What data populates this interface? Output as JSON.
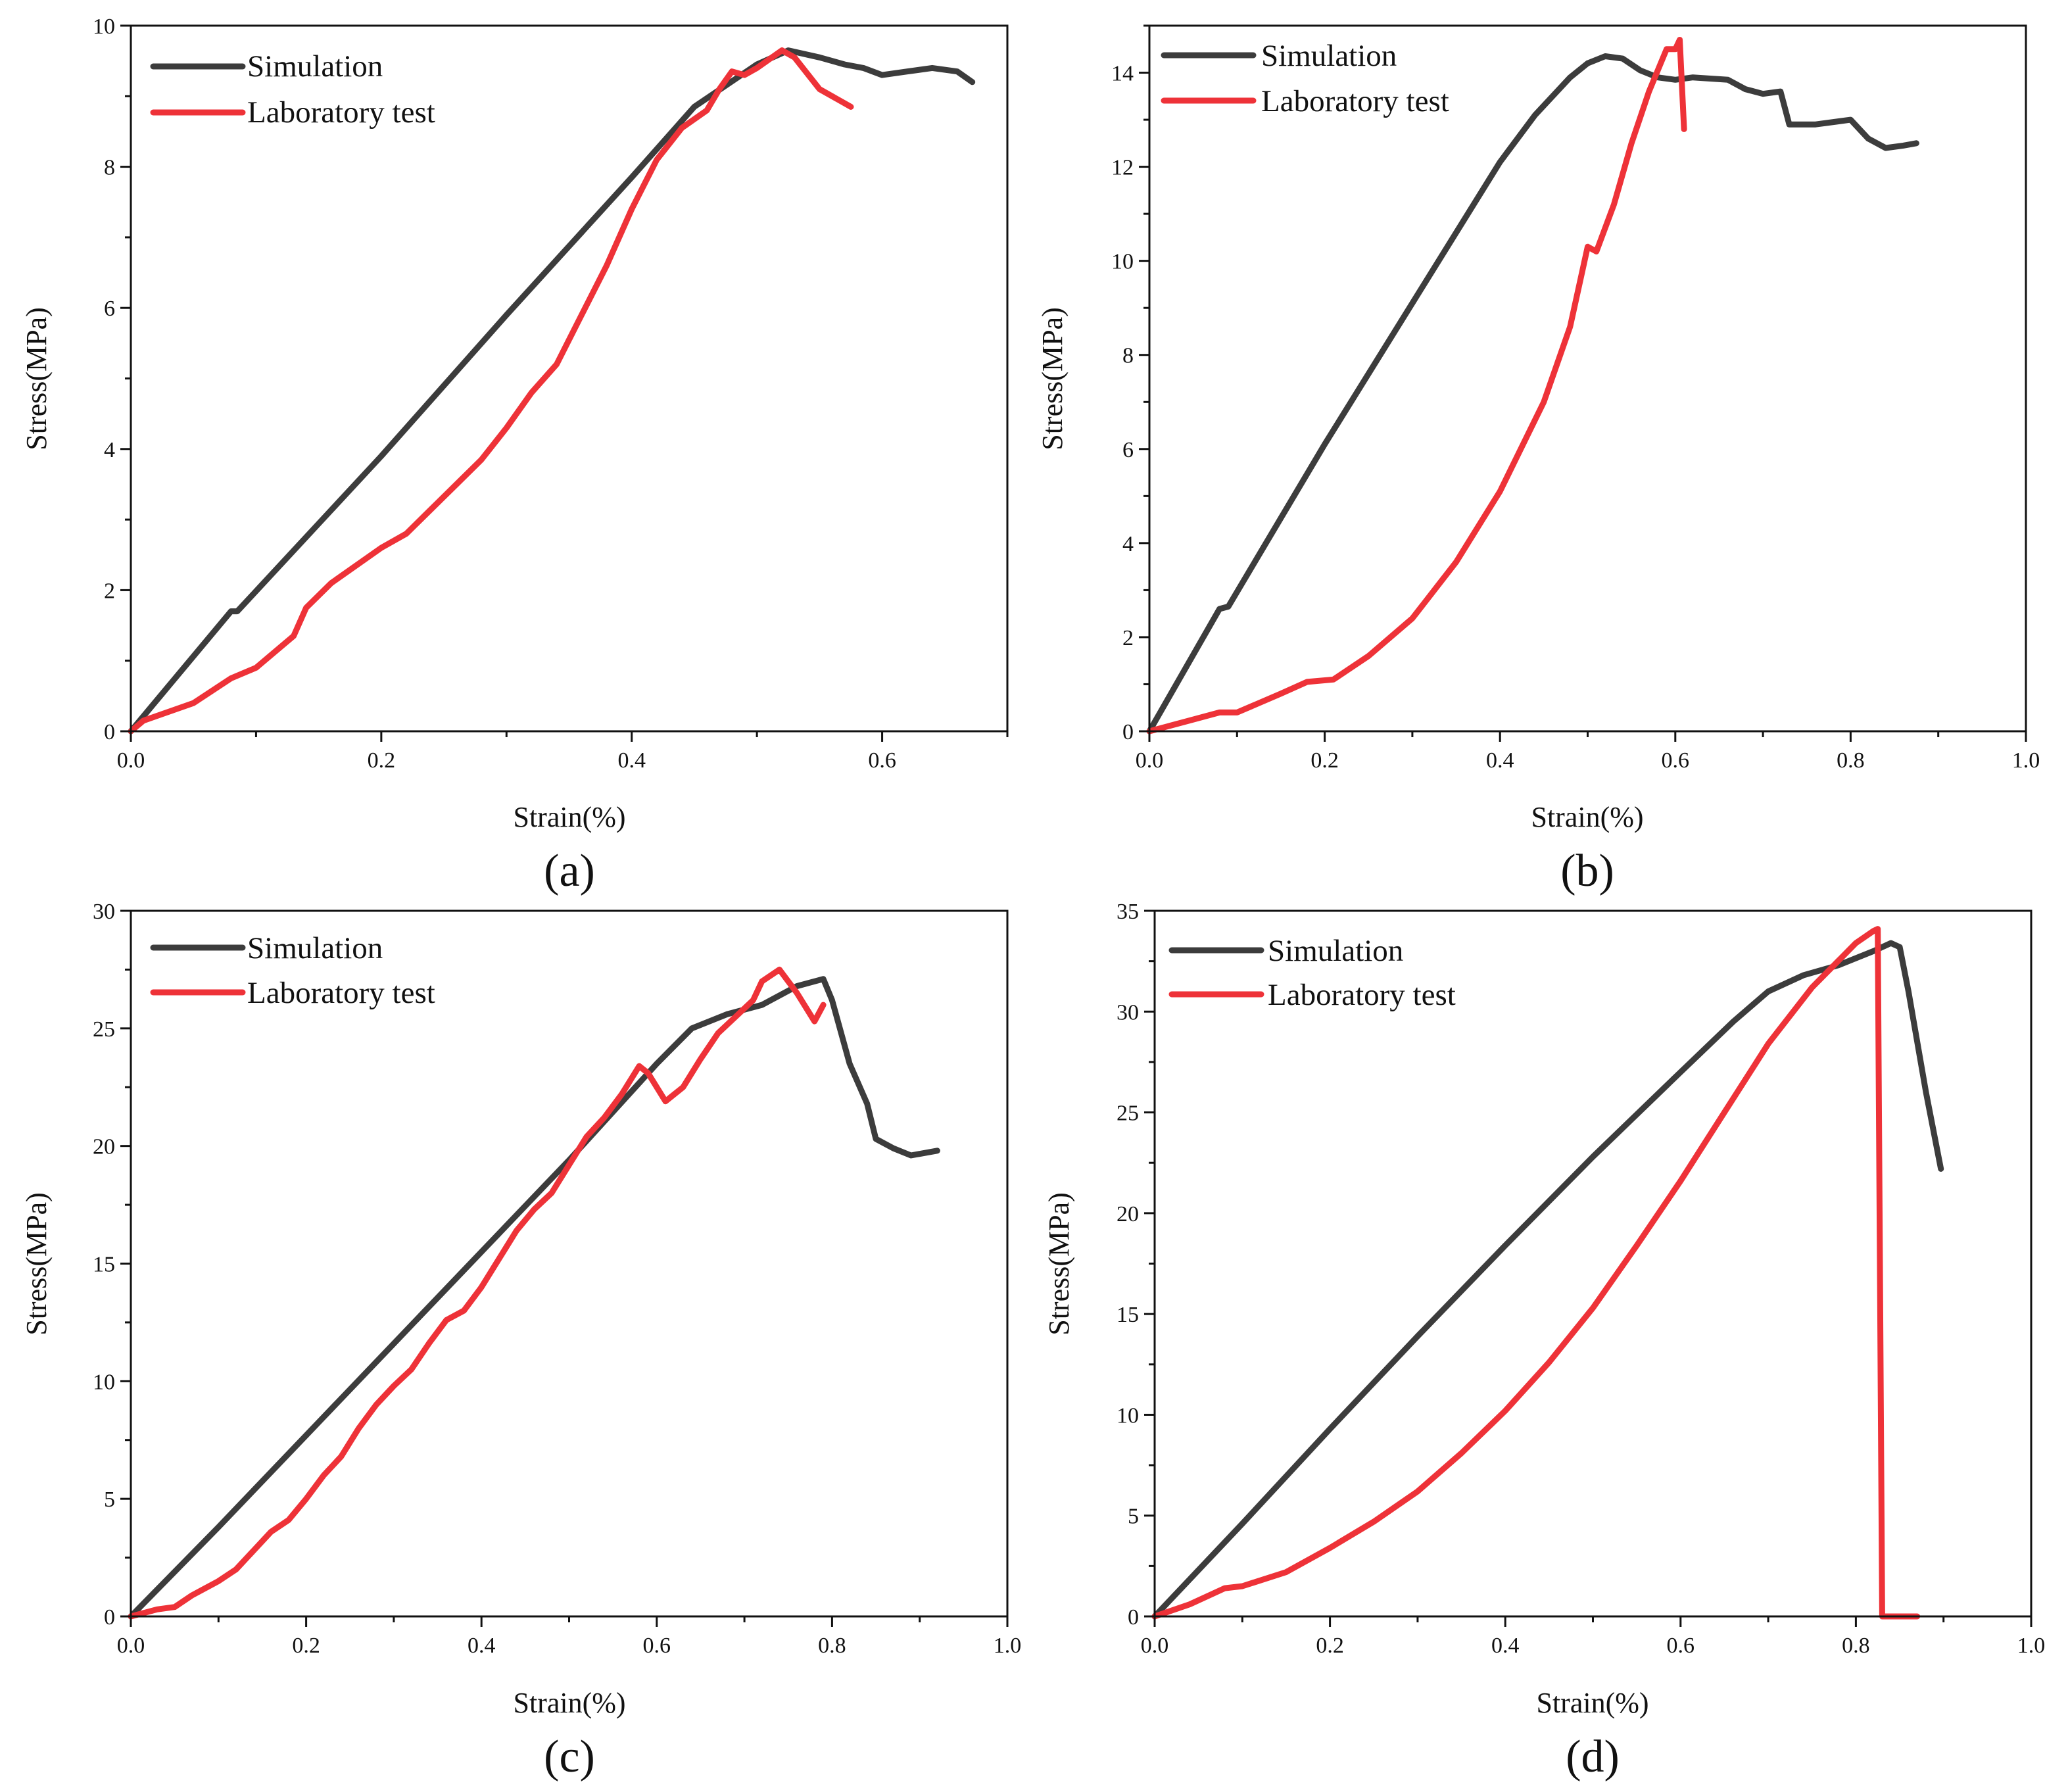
{
  "figure": {
    "colors": {
      "simulation": "#3c3c3c",
      "laboratory": "#ee3238"
    }
  },
  "chart_data": [
    {
      "type": "line",
      "panel_label": "(a)",
      "xlabel": "Strain(%)",
      "ylabel": "Stress(MPa)",
      "xlim": [
        0,
        0.7
      ],
      "ylim": [
        0,
        10
      ],
      "xticks": [
        0,
        0.2,
        0.4,
        0.6
      ],
      "xtick_labels": [
        "0.0",
        "0.2",
        "0.4",
        "0.6"
      ],
      "yticks": [
        0,
        2,
        4,
        6,
        8,
        10
      ],
      "ytick_labels": [
        "0",
        "2",
        "4",
        "6",
        "8",
        "10"
      ],
      "legend_position": "top-left",
      "series": [
        {
          "name": "Simulation",
          "color": "#3c3c3c",
          "points": [
            [
              0,
              0
            ],
            [
              0.08,
              1.7
            ],
            [
              0.085,
              1.7
            ],
            [
              0.2,
              3.9
            ],
            [
              0.3,
              5.9
            ],
            [
              0.4,
              7.85
            ],
            [
              0.45,
              8.85
            ],
            [
              0.5,
              9.45
            ],
            [
              0.525,
              9.65
            ],
            [
              0.55,
              9.55
            ],
            [
              0.57,
              9.45
            ],
            [
              0.585,
              9.4
            ],
            [
              0.6,
              9.3
            ],
            [
              0.62,
              9.35
            ],
            [
              0.64,
              9.4
            ],
            [
              0.66,
              9.35
            ],
            [
              0.672,
              9.2
            ]
          ]
        },
        {
          "name": "Laboratory test",
          "color": "#ee3238",
          "points": [
            [
              0,
              0
            ],
            [
              0.01,
              0.15
            ],
            [
              0.05,
              0.4
            ],
            [
              0.08,
              0.75
            ],
            [
              0.1,
              0.9
            ],
            [
              0.12,
              1.2
            ],
            [
              0.13,
              1.35
            ],
            [
              0.14,
              1.75
            ],
            [
              0.16,
              2.1
            ],
            [
              0.2,
              2.6
            ],
            [
              0.22,
              2.8
            ],
            [
              0.24,
              3.15
            ],
            [
              0.26,
              3.5
            ],
            [
              0.28,
              3.85
            ],
            [
              0.3,
              4.3
            ],
            [
              0.32,
              4.8
            ],
            [
              0.34,
              5.2
            ],
            [
              0.36,
              5.9
            ],
            [
              0.38,
              6.6
            ],
            [
              0.4,
              7.4
            ],
            [
              0.42,
              8.1
            ],
            [
              0.44,
              8.55
            ],
            [
              0.46,
              8.8
            ],
            [
              0.47,
              9.1
            ],
            [
              0.48,
              9.35
            ],
            [
              0.49,
              9.3
            ],
            [
              0.5,
              9.4
            ],
            [
              0.52,
              9.65
            ],
            [
              0.53,
              9.55
            ],
            [
              0.55,
              9.1
            ],
            [
              0.575,
              8.85
            ]
          ]
        }
      ]
    },
    {
      "type": "line",
      "panel_label": "(b)",
      "xlabel": "Strain(%)",
      "ylabel": "Stress(MPa)",
      "xlim": [
        0,
        1.0
      ],
      "ylim": [
        0,
        15
      ],
      "xticks": [
        0,
        0.2,
        0.4,
        0.6,
        0.8,
        1.0
      ],
      "xtick_labels": [
        "0.0",
        "0.2",
        "0.4",
        "0.6",
        "0.8",
        "1.0"
      ],
      "yticks": [
        0,
        2,
        4,
        6,
        8,
        10,
        12,
        14
      ],
      "ytick_labels": [
        "0",
        "2",
        "4",
        "6",
        "8",
        "10",
        "12",
        "14"
      ],
      "legend_position": "top-left",
      "series": [
        {
          "name": "Simulation",
          "color": "#3c3c3c",
          "points": [
            [
              0,
              0
            ],
            [
              0.08,
              2.6
            ],
            [
              0.09,
              2.65
            ],
            [
              0.2,
              6.1
            ],
            [
              0.3,
              9.1
            ],
            [
              0.4,
              12.1
            ],
            [
              0.44,
              13.1
            ],
            [
              0.48,
              13.9
            ],
            [
              0.5,
              14.2
            ],
            [
              0.52,
              14.35
            ],
            [
              0.54,
              14.3
            ],
            [
              0.56,
              14.05
            ],
            [
              0.58,
              13.9
            ],
            [
              0.6,
              13.85
            ],
            [
              0.62,
              13.9
            ],
            [
              0.66,
              13.85
            ],
            [
              0.68,
              13.65
            ],
            [
              0.7,
              13.55
            ],
            [
              0.72,
              13.6
            ],
            [
              0.73,
              12.9
            ],
            [
              0.76,
              12.9
            ],
            [
              0.8,
              13.0
            ],
            [
              0.82,
              12.6
            ],
            [
              0.84,
              12.4
            ],
            [
              0.86,
              12.45
            ],
            [
              0.875,
              12.5
            ]
          ]
        },
        {
          "name": "Laboratory test",
          "color": "#ee3238",
          "points": [
            [
              0,
              0
            ],
            [
              0.02,
              0.1
            ],
            [
              0.05,
              0.25
            ],
            [
              0.08,
              0.4
            ],
            [
              0.1,
              0.4
            ],
            [
              0.15,
              0.8
            ],
            [
              0.18,
              1.05
            ],
            [
              0.21,
              1.1
            ],
            [
              0.25,
              1.6
            ],
            [
              0.3,
              2.4
            ],
            [
              0.35,
              3.6
            ],
            [
              0.4,
              5.1
            ],
            [
              0.45,
              7.0
            ],
            [
              0.48,
              8.6
            ],
            [
              0.5,
              10.3
            ],
            [
              0.51,
              10.2
            ],
            [
              0.53,
              11.2
            ],
            [
              0.55,
              12.5
            ],
            [
              0.57,
              13.6
            ],
            [
              0.59,
              14.5
            ],
            [
              0.6,
              14.5
            ],
            [
              0.605,
              14.7
            ],
            [
              0.61,
              12.8
            ]
          ]
        }
      ]
    },
    {
      "type": "line",
      "panel_label": "(c)",
      "xlabel": "Strain(%)",
      "ylabel": "Stress(MPa)",
      "xlim": [
        0,
        1.0
      ],
      "ylim": [
        0,
        30
      ],
      "xticks": [
        0,
        0.2,
        0.4,
        0.6,
        0.8,
        1.0
      ],
      "xtick_labels": [
        "0.0",
        "0.2",
        "0.4",
        "0.6",
        "0.8",
        "1.0"
      ],
      "yticks": [
        0,
        5,
        10,
        15,
        20,
        25,
        30
      ],
      "ytick_labels": [
        "0",
        "5",
        "10",
        "15",
        "20",
        "25",
        "30"
      ],
      "legend_position": "top-left",
      "series": [
        {
          "name": "Simulation",
          "color": "#3c3c3c",
          "points": [
            [
              0,
              0
            ],
            [
              0.1,
              3.8
            ],
            [
              0.2,
              7.7
            ],
            [
              0.3,
              11.6
            ],
            [
              0.4,
              15.5
            ],
            [
              0.5,
              19.4
            ],
            [
              0.6,
              23.5
            ],
            [
              0.64,
              25.0
            ],
            [
              0.68,
              25.6
            ],
            [
              0.72,
              26.0
            ],
            [
              0.76,
              26.8
            ],
            [
              0.79,
              27.1
            ],
            [
              0.8,
              26.2
            ],
            [
              0.82,
              23.5
            ],
            [
              0.84,
              21.8
            ],
            [
              0.85,
              20.3
            ],
            [
              0.87,
              19.9
            ],
            [
              0.89,
              19.6
            ],
            [
              0.92,
              19.8
            ]
          ]
        },
        {
          "name": "Laboratory test",
          "color": "#ee3238",
          "points": [
            [
              0,
              0
            ],
            [
              0.03,
              0.3
            ],
            [
              0.05,
              0.4
            ],
            [
              0.07,
              0.9
            ],
            [
              0.1,
              1.5
            ],
            [
              0.12,
              2.0
            ],
            [
              0.14,
              2.8
            ],
            [
              0.16,
              3.6
            ],
            [
              0.18,
              4.1
            ],
            [
              0.2,
              5.0
            ],
            [
              0.22,
              6.0
            ],
            [
              0.24,
              6.8
            ],
            [
              0.26,
              8.0
            ],
            [
              0.28,
              9.0
            ],
            [
              0.3,
              9.8
            ],
            [
              0.32,
              10.5
            ],
            [
              0.34,
              11.6
            ],
            [
              0.36,
              12.6
            ],
            [
              0.38,
              13.0
            ],
            [
              0.4,
              14.0
            ],
            [
              0.42,
              15.2
            ],
            [
              0.44,
              16.4
            ],
            [
              0.46,
              17.3
            ],
            [
              0.48,
              18.0
            ],
            [
              0.5,
              19.2
            ],
            [
              0.52,
              20.4
            ],
            [
              0.54,
              21.2
            ],
            [
              0.56,
              22.2
            ],
            [
              0.58,
              23.4
            ],
            [
              0.59,
              23.1
            ],
            [
              0.61,
              21.9
            ],
            [
              0.63,
              22.5
            ],
            [
              0.65,
              23.7
            ],
            [
              0.67,
              24.8
            ],
            [
              0.69,
              25.5
            ],
            [
              0.71,
              26.2
            ],
            [
              0.72,
              27.0
            ],
            [
              0.74,
              27.5
            ],
            [
              0.76,
              26.5
            ],
            [
              0.78,
              25.3
            ],
            [
              0.79,
              26.0
            ]
          ]
        }
      ]
    },
    {
      "type": "line",
      "panel_label": "(d)",
      "xlabel": "Strain(%)",
      "ylabel": "Stress(MPa)",
      "xlim": [
        0,
        1.0
      ],
      "ylim": [
        0,
        35
      ],
      "xticks": [
        0,
        0.2,
        0.4,
        0.6,
        0.8,
        1.0
      ],
      "xtick_labels": [
        "0.0",
        "0.2",
        "0.4",
        "0.6",
        "0.8",
        "1.0"
      ],
      "yticks": [
        0,
        5,
        10,
        15,
        20,
        25,
        30,
        35
      ],
      "ytick_labels": [
        "0",
        "5",
        "10",
        "15",
        "20",
        "25",
        "30",
        "35"
      ],
      "legend_position": "top-left",
      "series": [
        {
          "name": "Simulation",
          "color": "#3c3c3c",
          "points": [
            [
              0,
              0
            ],
            [
              0.1,
              4.6
            ],
            [
              0.2,
              9.3
            ],
            [
              0.3,
              13.9
            ],
            [
              0.4,
              18.4
            ],
            [
              0.5,
              22.8
            ],
            [
              0.6,
              27.0
            ],
            [
              0.66,
              29.5
            ],
            [
              0.7,
              31.0
            ],
            [
              0.74,
              31.8
            ],
            [
              0.78,
              32.3
            ],
            [
              0.82,
              33.0
            ],
            [
              0.84,
              33.4
            ],
            [
              0.85,
              33.2
            ],
            [
              0.86,
              31.0
            ],
            [
              0.88,
              26.0
            ],
            [
              0.897,
              22.2
            ]
          ]
        },
        {
          "name": "Laboratory test",
          "color": "#ee3238",
          "points": [
            [
              0,
              0
            ],
            [
              0.04,
              0.6
            ],
            [
              0.08,
              1.4
            ],
            [
              0.1,
              1.5
            ],
            [
              0.15,
              2.2
            ],
            [
              0.2,
              3.4
            ],
            [
              0.25,
              4.7
            ],
            [
              0.3,
              6.2
            ],
            [
              0.35,
              8.1
            ],
            [
              0.4,
              10.2
            ],
            [
              0.45,
              12.6
            ],
            [
              0.5,
              15.3
            ],
            [
              0.55,
              18.4
            ],
            [
              0.6,
              21.6
            ],
            [
              0.65,
              25.0
            ],
            [
              0.7,
              28.4
            ],
            [
              0.75,
              31.2
            ],
            [
              0.8,
              33.4
            ],
            [
              0.82,
              34.0
            ],
            [
              0.825,
              34.1
            ],
            [
              0.83,
              0.0
            ],
            [
              0.87,
              0.0
            ]
          ]
        }
      ]
    }
  ]
}
